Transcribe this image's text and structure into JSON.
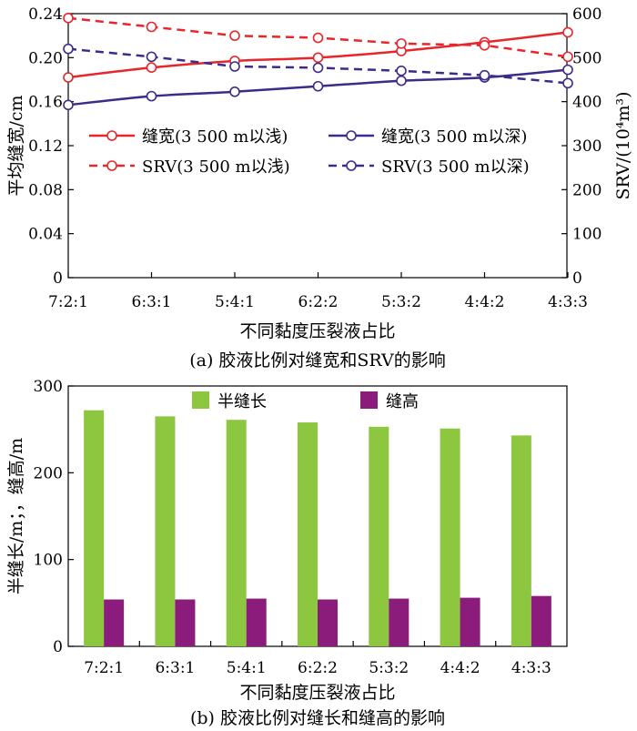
{
  "chart_data": [
    {
      "type": "line",
      "categories": [
        "7:2:1",
        "6:3:1",
        "5:4:1",
        "6:2:2",
        "5:3:2",
        "4:4:2",
        "4:3:3"
      ],
      "xlabel": "不同黏度压裂液占比",
      "ylabel": "平均缝宽/cm",
      "ylabel2": "SRV/(10⁴m³)",
      "ylim": [
        0,
        0.24
      ],
      "ylim2": [
        0,
        600
      ],
      "yticks": [
        "0",
        "0.04",
        "0.08",
        "0.12",
        "0.16",
        "0.20",
        "0.24"
      ],
      "yticks2": [
        "0",
        "100",
        "200",
        "300",
        "400",
        "500",
        "600"
      ],
      "caption": "(a) 胶液比例对缝宽和SRV的影响",
      "grid": false,
      "legend_position": "middle",
      "series": [
        {
          "name": "缝宽(3 500 m以浅)",
          "axis": "left",
          "style": "solid",
          "color": "#e8262a",
          "values": [
            0.182,
            0.191,
            0.197,
            0.2,
            0.206,
            0.214,
            0.223
          ]
        },
        {
          "name": "缝宽(3 500 m以深)",
          "axis": "left",
          "style": "solid",
          "color": "#3d2a8a",
          "values": [
            0.157,
            0.165,
            0.169,
            0.174,
            0.179,
            0.182,
            0.189
          ]
        },
        {
          "name": "SRV(3 500 m以浅)",
          "axis": "right",
          "style": "dashed",
          "color": "#e8262a",
          "values": [
            590,
            570,
            550,
            545,
            532,
            528,
            502
          ]
        },
        {
          "name": "SRV(3 500 m以深)",
          "axis": "right",
          "style": "dashed",
          "color": "#3d2a8a",
          "values": [
            520,
            502,
            480,
            477,
            470,
            460,
            442
          ]
        }
      ]
    },
    {
      "type": "bar",
      "categories": [
        "7:2:1",
        "6:3:1",
        "5:4:1",
        "6:2:2",
        "5:3:2",
        "4:4:2",
        "4:3:3"
      ],
      "xlabel": "不同黏度压裂液占比",
      "ylabel": "半缝长/m；，缝高/m",
      "ylim": [
        0,
        300
      ],
      "yticks": [
        "0",
        "100",
        "200",
        "300"
      ],
      "caption": "(b) 胶液比例对缝长和缝高的影响",
      "grid": false,
      "legend_position": "top",
      "series": [
        {
          "name": "半缝长",
          "color": "#8dc63f",
          "values": [
            272,
            265,
            261,
            258,
            253,
            251,
            243
          ]
        },
        {
          "name": "缝高",
          "color": "#8b1c7b",
          "values": [
            54,
            54,
            55,
            54,
            55,
            56,
            58
          ]
        }
      ]
    }
  ]
}
